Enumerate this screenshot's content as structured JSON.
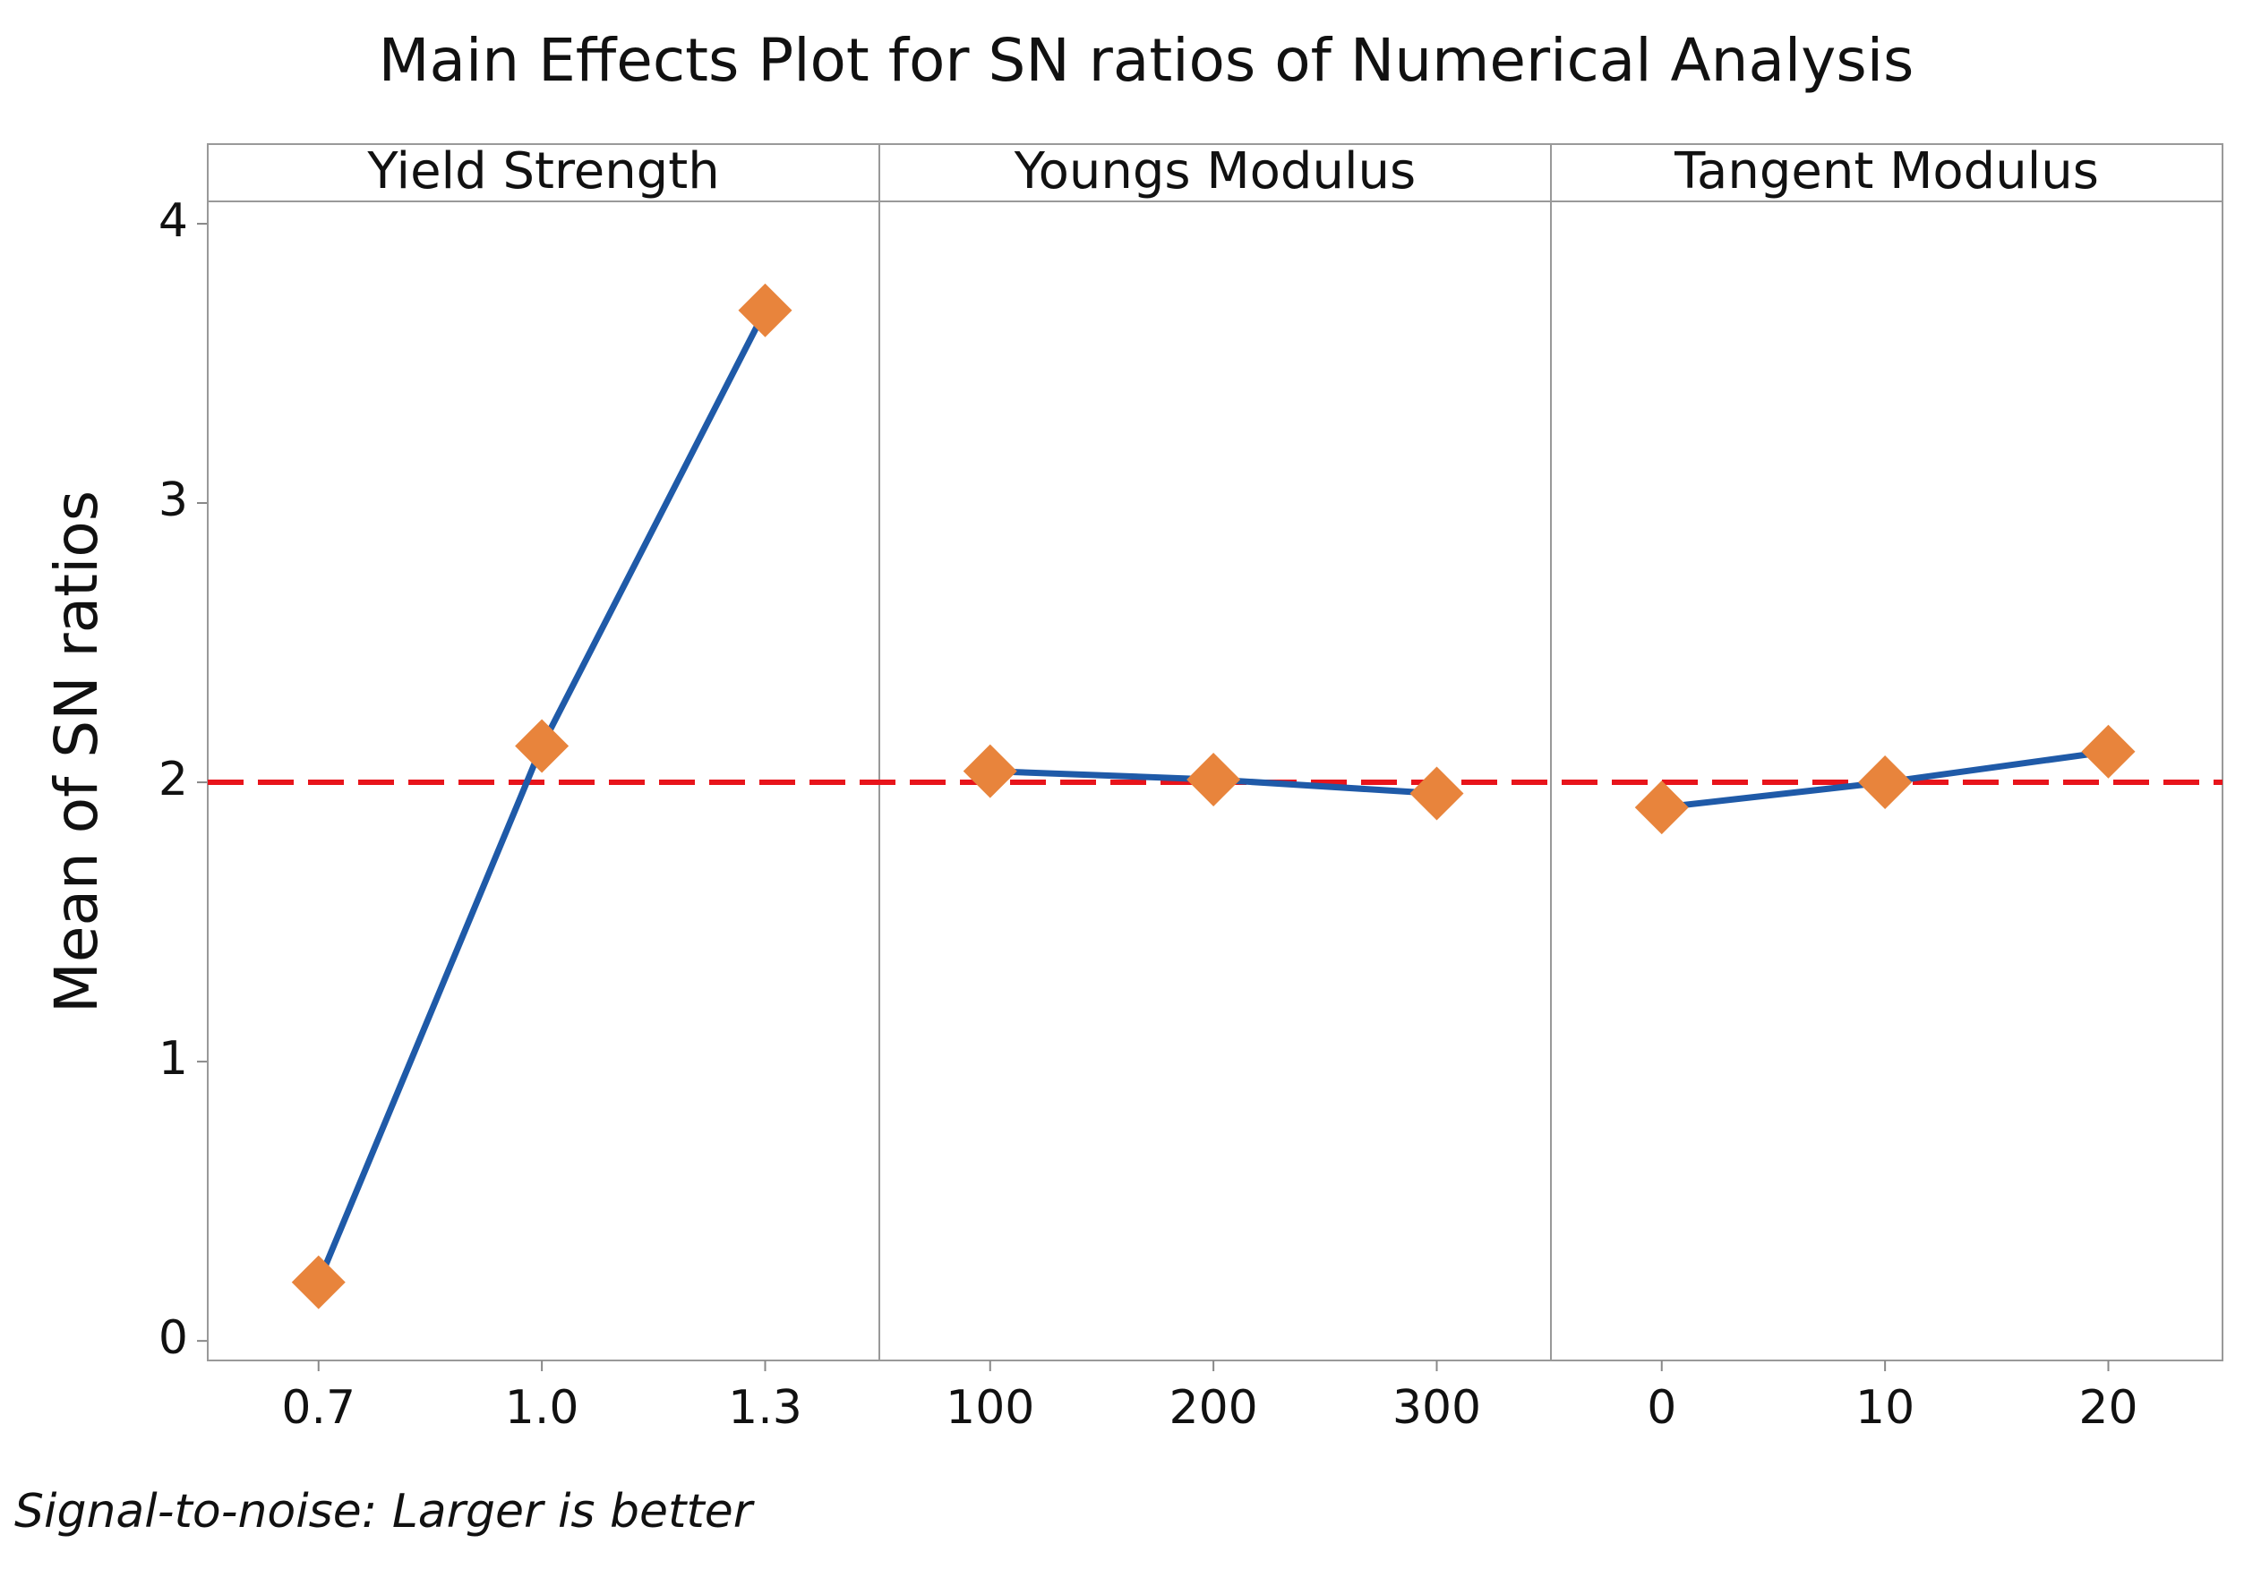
{
  "title": "Main Effects Plot for SN ratios of Numerical Analysis",
  "note": "Signal-to-noise: Larger is better",
  "y_axis": {
    "label": "Mean of SN ratios",
    "lim": [
      -0.07,
      4.08
    ],
    "ticks": [
      0,
      1,
      2,
      3,
      4
    ]
  },
  "reference_line": {
    "value": 2.0,
    "color": "#e8141b",
    "dashed": true
  },
  "chart_data": [
    {
      "type": "line",
      "title": "Yield Strength",
      "categories": [
        "0.7",
        "1.0",
        "1.3"
      ],
      "values": [
        0.21,
        2.13,
        3.69
      ],
      "color": "#1f5aa8",
      "marker_color": "#e8843c"
    },
    {
      "type": "line",
      "title": "Youngs Modulus",
      "categories": [
        "100",
        "200",
        "300"
      ],
      "values": [
        2.04,
        2.01,
        1.96
      ],
      "color": "#1f5aa8",
      "marker_color": "#e8843c"
    },
    {
      "type": "line",
      "title": "Tangent Modulus",
      "categories": [
        "0",
        "10",
        "20"
      ],
      "values": [
        1.91,
        2.0,
        2.11
      ],
      "color": "#1f5aa8",
      "marker_color": "#e8843c"
    }
  ]
}
